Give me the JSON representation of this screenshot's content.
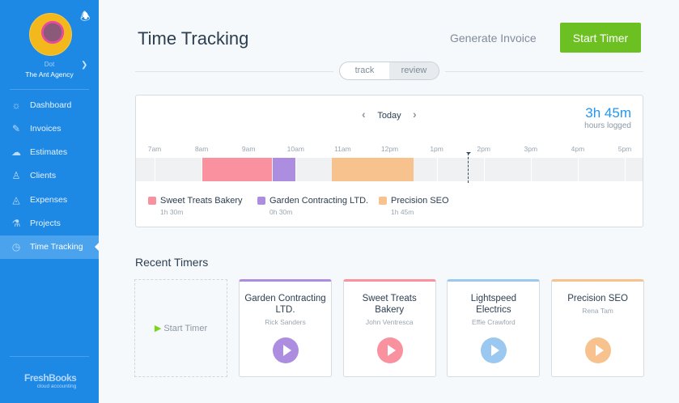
{
  "sidebar": {
    "user": "Dot",
    "agency": "The Ant Agency",
    "items": [
      {
        "label": "Dashboard",
        "icon": "dashboard-icon"
      },
      {
        "label": "Invoices",
        "icon": "invoice-icon"
      },
      {
        "label": "Estimates",
        "icon": "estimate-icon"
      },
      {
        "label": "Clients",
        "icon": "clients-icon"
      },
      {
        "label": "Expenses",
        "icon": "expenses-icon"
      },
      {
        "label": "Projects",
        "icon": "projects-icon"
      },
      {
        "label": "Time Tracking",
        "icon": "stopwatch-icon",
        "active": true
      }
    ],
    "logo": "FreshBooks",
    "logo_sub": "cloud accounting"
  },
  "header": {
    "title": "Time Tracking",
    "generate_invoice": "Generate Invoice",
    "start_timer": "Start Timer"
  },
  "tabs": {
    "track": "track",
    "review": "review",
    "selected": "review"
  },
  "timeline": {
    "day": "Today",
    "hours_logged": "3h 45m",
    "hours_label": "hours logged",
    "ticks": [
      "7am",
      "8am",
      "9am",
      "10am",
      "11am",
      "12pm",
      "1pm",
      "2pm",
      "3pm",
      "4pm",
      "5pm"
    ],
    "current_time": "1:40pm",
    "entries": [
      {
        "client": "Sweet Treats Bakery",
        "duration": "1h 30m",
        "start": "8:00",
        "end": "9:30",
        "color": "#f9919f"
      },
      {
        "client": "Garden Contracting LTD.",
        "duration": "0h 30m",
        "start": "9:30",
        "end": "10:00",
        "color": "#ac8ddf"
      },
      {
        "client": "Precision SEO",
        "duration": "1h 45m",
        "start": "10:45",
        "end": "12:30",
        "color": "#f7c28e"
      }
    ]
  },
  "recent": {
    "title": "Recent Timers",
    "start_timer": "Start Timer",
    "cards": [
      {
        "client": "Garden Contracting LTD.",
        "person": "Rick Sanders",
        "color": "#ac8ddf"
      },
      {
        "client": "Sweet Treats Bakery",
        "person": "John Ventresca",
        "color": "#f9919f"
      },
      {
        "client": "Lightspeed Electrics",
        "person": "Effie Crawford",
        "color": "#9ac8f0"
      },
      {
        "client": "Precision SEO",
        "person": "Rena Tam",
        "color": "#f7c28e"
      }
    ]
  }
}
